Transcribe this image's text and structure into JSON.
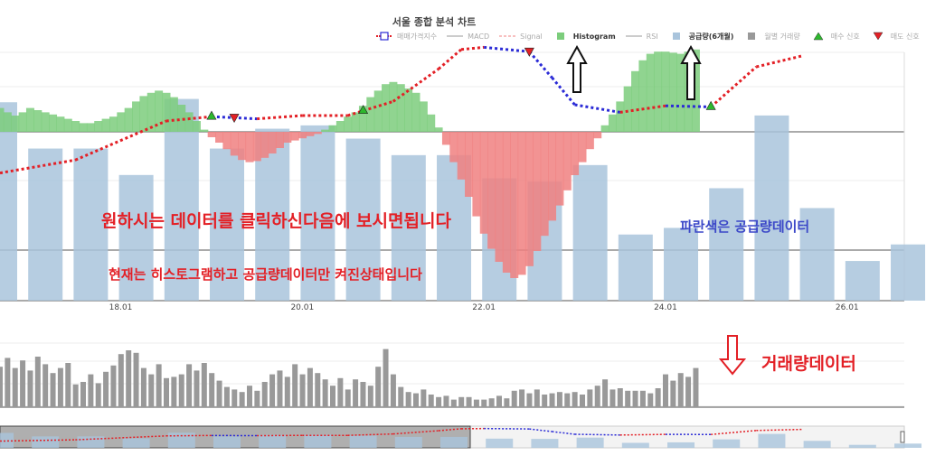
{
  "chart": {
    "title": "서울 종합 분석 차트",
    "legend": [
      {
        "label": "매매가격지수",
        "kind": "line-dotted",
        "color": "#e32026",
        "active": false,
        "symbol": "box"
      },
      {
        "label": "MACD",
        "kind": "line",
        "color": "#999999",
        "active": false
      },
      {
        "label": "Signal",
        "kind": "line-dashed",
        "color": "#f08080",
        "active": false
      },
      {
        "label": "Histogram",
        "kind": "square",
        "color": "#7ccd7c",
        "active": true
      },
      {
        "label": "RSI",
        "kind": "line",
        "color": "#999999",
        "active": false
      },
      {
        "label": "공급량(6개월)",
        "kind": "square",
        "color": "#a9c4dc",
        "active": true
      },
      {
        "label": "월별 거래량",
        "kind": "square",
        "color": "#999999",
        "active": false
      },
      {
        "label": "매수 신호",
        "kind": "tri-up",
        "color": "#2db82d",
        "active": false
      },
      {
        "label": "매도 신호",
        "kind": "tri-down",
        "color": "#e32026",
        "active": false
      }
    ],
    "x_ticks": [
      "18.01",
      "20.01",
      "22.01",
      "24.01",
      "26.01"
    ]
  },
  "annotations": {
    "click_hint": "원하시는 데이터를 클릭하신다음에 보시면됩니다",
    "current_state": "현재는 히스토그램하고 공급량데이터만 켜진상태입니다",
    "supply_label": "파란색은 공급량데이터",
    "volume_label": "거래량데이터"
  },
  "colors": {
    "histogram_pos": "#7ccd7c",
    "histogram_neg": "#f08080",
    "supply": "#a9c4dc",
    "volume": "#999999",
    "price_up": "#e32026",
    "price_down": "#2b2bd6",
    "buy": "#2db82d",
    "sell": "#e32026",
    "annotation_red": "#e32026",
    "annotation_blue": "#3c48c8"
  },
  "chart_data": {
    "type": "bar",
    "x_start": "2016-07",
    "x_end": "2026-09",
    "supply": {
      "name": "공급량(6개월)",
      "t": [
        2016.67,
        2017.17,
        2017.67,
        2018.17,
        2018.67,
        2019.17,
        2019.67,
        2020.17,
        2020.67,
        2021.17,
        2021.67,
        2022.17,
        2022.67,
        2023.17,
        2023.67,
        2024.17,
        2024.67,
        2025.17,
        2025.67,
        2026.17,
        2026.67
      ],
      "values": [
        60,
        46,
        46,
        38,
        61,
        46,
        52,
        53,
        49,
        44,
        44,
        37,
        36,
        41,
        20,
        22,
        34,
        56,
        28,
        12,
        17
      ]
    },
    "histogram": {
      "name": "Histogram",
      "t_start": 2016.67,
      "t_step": 0.0833,
      "values": [
        0.22,
        0.18,
        0.15,
        0.18,
        0.22,
        0.2,
        0.18,
        0.16,
        0.14,
        0.12,
        0.1,
        0.08,
        0.08,
        0.1,
        0.12,
        0.14,
        0.18,
        0.22,
        0.28,
        0.33,
        0.36,
        0.38,
        0.36,
        0.32,
        0.25,
        0.18,
        0.1,
        0.02,
        -0.05,
        -0.1,
        -0.16,
        -0.22,
        -0.26,
        -0.28,
        -0.27,
        -0.24,
        -0.2,
        -0.15,
        -0.1,
        -0.08,
        -0.06,
        -0.04,
        -0.02,
        0.02,
        0.06,
        0.1,
        0.14,
        0.18,
        0.24,
        0.32,
        0.38,
        0.44,
        0.46,
        0.44,
        0.4,
        0.36,
        0.28,
        0.16,
        0.04,
        -0.12,
        -0.28,
        -0.44,
        -0.6,
        -0.78,
        -0.94,
        -1.08,
        -1.2,
        -1.3,
        -1.35,
        -1.32,
        -1.24,
        -1.1,
        -0.96,
        -0.82,
        -0.68,
        -0.54,
        -0.4,
        -0.28,
        -0.16,
        -0.06,
        0.06,
        0.16,
        0.28,
        0.42,
        0.56,
        0.66,
        0.72,
        0.74,
        0.74,
        0.73,
        0.72,
        0.74,
        0.76
      ]
    },
    "price_index": {
      "name": "매매가격지수",
      "t": [
        2016.67,
        2017.5,
        2018.5,
        2019.0,
        2019.5,
        2020.0,
        2020.5,
        2021.0,
        2021.5,
        2021.75,
        2022.0,
        2022.5,
        2022.75,
        2023.0,
        2023.5,
        2024.0,
        2024.5,
        2025.0,
        2025.5
      ],
      "values": [
        -0.38,
        -0.26,
        0.1,
        0.14,
        0.12,
        0.15,
        0.15,
        0.28,
        0.58,
        0.76,
        0.78,
        0.74,
        0.5,
        0.25,
        0.18,
        0.24,
        0.23,
        0.6,
        0.7
      ]
    },
    "buy_signals": [
      2019.0,
      2020.67,
      2024.5
    ],
    "sell_signals": [
      2019.25,
      2022.5
    ],
    "volume": {
      "name": "월별 거래량",
      "t_start": 2016.67,
      "t_step": 0.0833,
      "values": [
        3.2,
        3.9,
        3.1,
        3.7,
        2.9,
        4.0,
        3.4,
        2.7,
        3.1,
        3.5,
        1.8,
        2.0,
        2.6,
        1.9,
        2.8,
        3.3,
        4.2,
        4.5,
        4.3,
        3.1,
        2.6,
        3.4,
        2.3,
        2.4,
        2.6,
        3.4,
        2.9,
        3.5,
        2.7,
        2.1,
        1.6,
        1.4,
        1.2,
        1.7,
        1.3,
        2.0,
        2.6,
        2.9,
        2.4,
        3.4,
        2.6,
        3.1,
        2.7,
        2.2,
        1.7,
        2.3,
        1.4,
        2.2,
        2.0,
        1.7,
        3.2,
        4.6,
        2.6,
        1.6,
        1.2,
        1.1,
        1.4,
        1.0,
        0.8,
        0.9,
        0.6,
        0.8,
        0.8,
        0.6,
        0.6,
        0.7,
        0.9,
        0.7,
        1.3,
        1.4,
        1.1,
        1.4,
        1.0,
        1.1,
        1.2,
        1.1,
        1.2,
        1.0,
        1.4,
        1.7,
        2.2,
        1.4,
        1.5,
        1.3,
        1.3,
        1.3,
        1.1,
        1.5,
        2.6,
        2.1,
        2.7,
        2.4,
        3.1
      ]
    },
    "volume_ylim": [
      0,
      5
    ],
    "supply_ylim": [
      0,
      80
    ]
  }
}
